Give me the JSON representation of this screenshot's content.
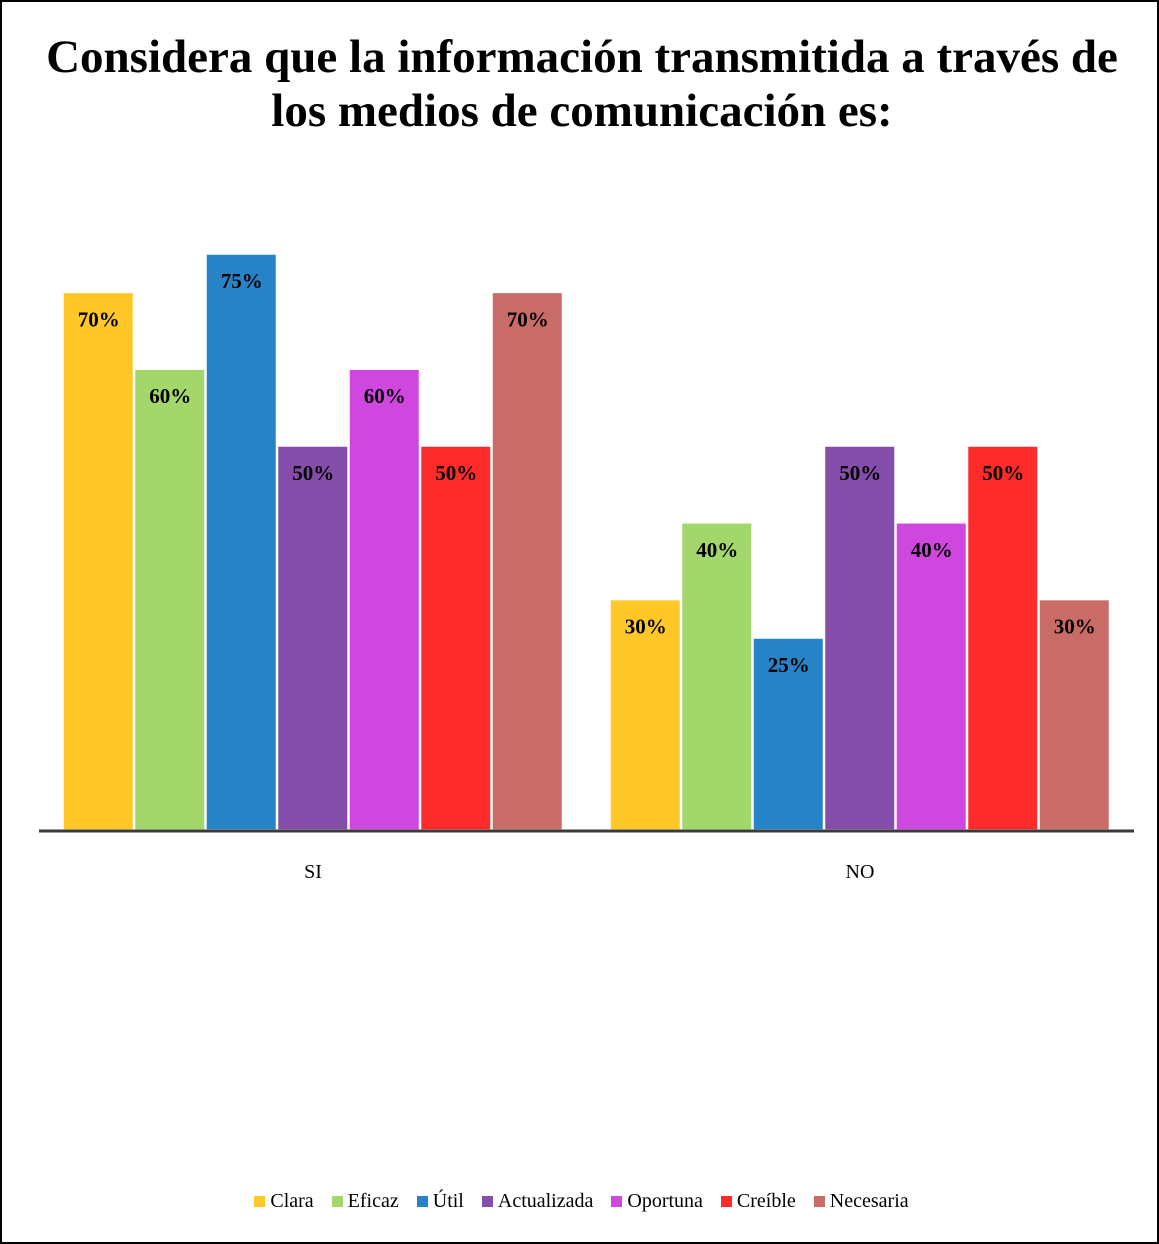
{
  "chart_data": {
    "type": "bar",
    "title": "Considera que la información transmitida a través de los medios de comunicación es:",
    "categories": [
      "SI",
      "NO"
    ],
    "series": [
      {
        "name": "Clara",
        "color": "#FFC828",
        "values": [
          70,
          30
        ],
        "labels": [
          "70%",
          "30%"
        ]
      },
      {
        "name": "Eficaz",
        "color": "#A3D66B",
        "values": [
          60,
          40
        ],
        "labels": [
          "60%",
          "40%"
        ]
      },
      {
        "name": "Útil",
        "color": "#2783C8",
        "values": [
          75,
          25
        ],
        "labels": [
          "75%",
          "25%"
        ]
      },
      {
        "name": "Actualizada",
        "color": "#844DAA",
        "values": [
          50,
          50
        ],
        "labels": [
          "50%",
          "50%"
        ]
      },
      {
        "name": "Oportuna",
        "color": "#D047E0",
        "values": [
          60,
          40
        ],
        "labels": [
          "60%",
          "40%"
        ]
      },
      {
        "name": "Creíble",
        "color": "#FF2A2A",
        "values": [
          50,
          50
        ],
        "labels": [
          "50%",
          "50%"
        ]
      },
      {
        "name": "Necesaria",
        "color": "#C96B67",
        "values": [
          70,
          30
        ],
        "labels": [
          "70%",
          "30%"
        ]
      }
    ],
    "ylim": [
      0,
      100
    ],
    "xlabel": "",
    "ylabel": "",
    "grid": false,
    "legend": "bottom"
  }
}
